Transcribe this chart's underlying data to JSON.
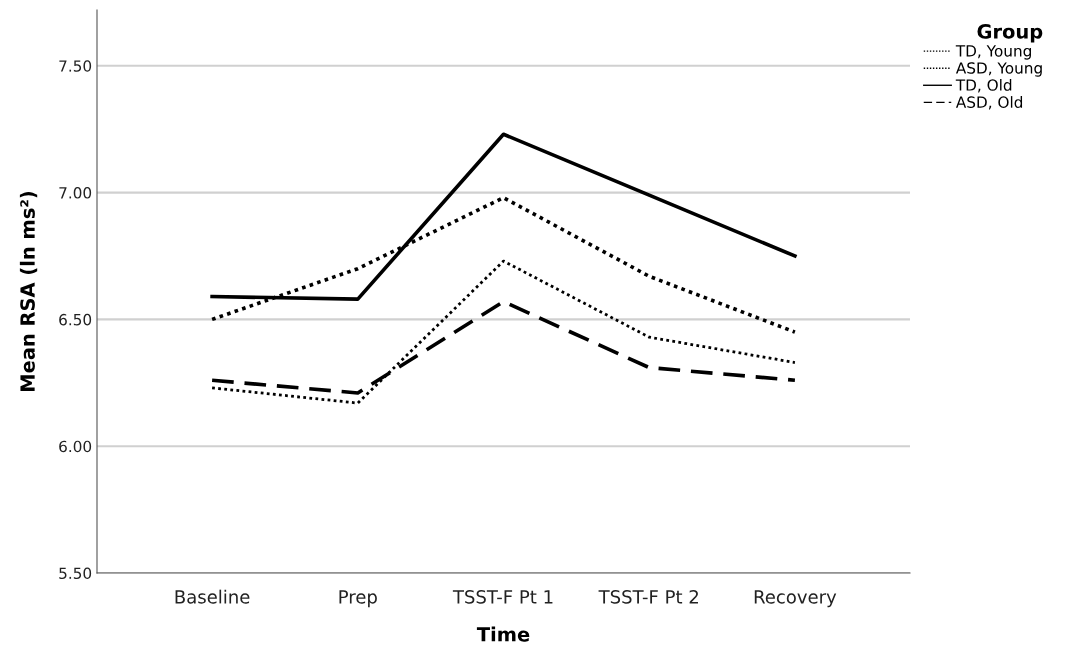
{
  "chart_data": {
    "type": "line",
    "xlabel": "Time",
    "ylabel": "Mean RSA (ln ms²)",
    "legend_title": "Group",
    "legend": "top right",
    "grid": "y",
    "marker": "none",
    "categories": [
      "Baseline",
      "Prep",
      "TSST-F Pt 1",
      "TSST-F Pt 2",
      "Recovery"
    ],
    "ylim": [
      5.5,
      7.72
    ],
    "yticks": [
      {
        "value": 5.5,
        "label": "5.50"
      },
      {
        "value": 6.0,
        "label": "6.00"
      },
      {
        "value": 6.5,
        "label": "6.50"
      },
      {
        "value": 7.0,
        "label": "7.00"
      },
      {
        "value": 7.5,
        "label": "7.50"
      }
    ],
    "series": [
      {
        "name": "TD, Young",
        "color": "#000000",
        "line_style": "dotted",
        "values": [
          6.23,
          6.17,
          6.73,
          6.43,
          6.33
        ]
      },
      {
        "name": "ASD, Young",
        "color": "#000000",
        "line_style": "dotted",
        "values": [
          6.5,
          6.7,
          6.98,
          6.67,
          6.45
        ]
      },
      {
        "name": "TD, Old",
        "color": "#000000",
        "line_style": "solid",
        "values": [
          6.59,
          6.58,
          7.23,
          6.99,
          6.75
        ]
      },
      {
        "name": "ASD, Old",
        "color": "#000000",
        "line_style": "dashed",
        "values": [
          6.26,
          6.21,
          6.57,
          6.31,
          6.26
        ]
      }
    ]
  }
}
